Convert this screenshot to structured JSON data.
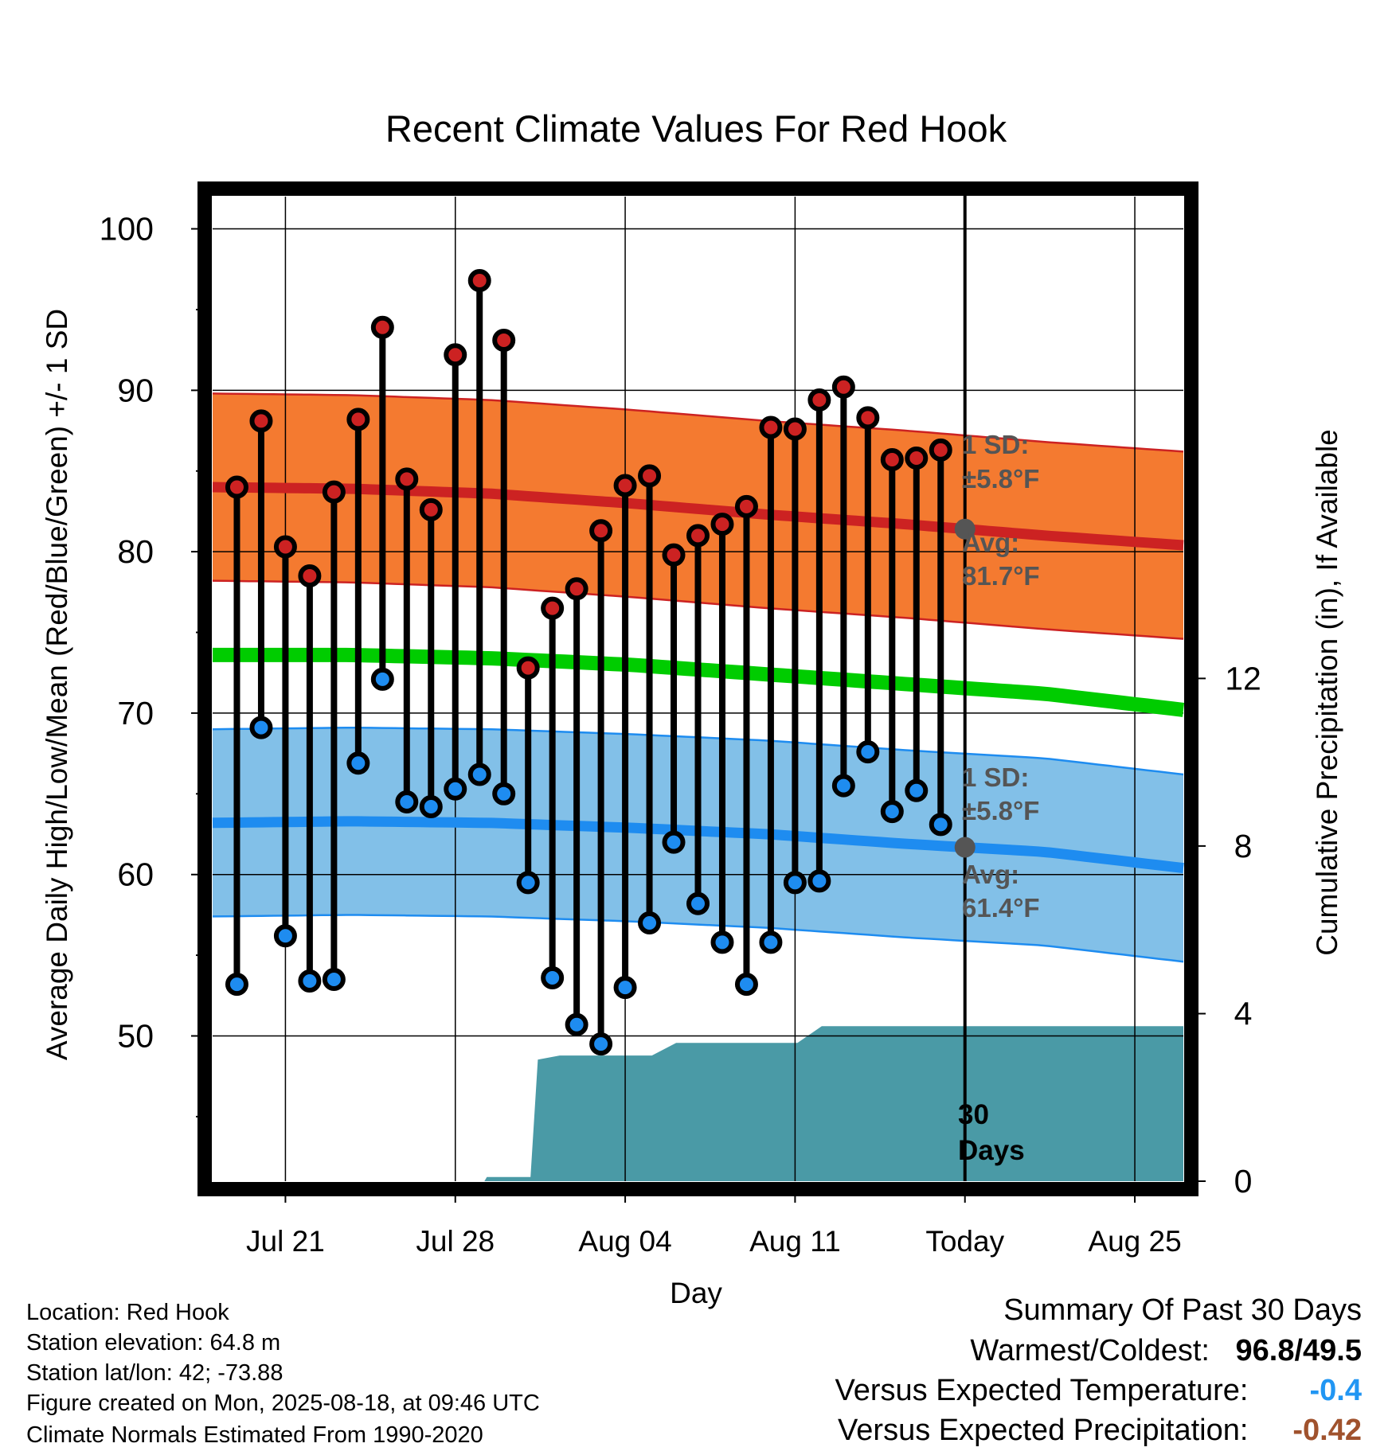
{
  "chart_data": {
    "type": "line",
    "title": "Recent Climate Values For Red Hook",
    "xlabel": "Day",
    "ylabel": "Average Daily High/Low/Mean (Red/Blue/Green) +/- 1 SD",
    "y2label": "Cumulative Precipitation (in), If Available",
    "ylim": [
      41,
      102
    ],
    "y2lim": [
      0,
      23.5
    ],
    "yticks": [
      "50",
      "60",
      "70",
      "80",
      "90",
      "100"
    ],
    "y2ticks": [
      "0",
      "4",
      "8",
      "12"
    ],
    "xticks": [
      "Jul 21",
      "Jul 28",
      "Aug 04",
      "Aug 11",
      "Today",
      "Aug 25"
    ],
    "grid": true,
    "colors": {
      "high": "#cc2222",
      "high_band": "#f47a30",
      "low": "#1e8cf0",
      "low_band": "#82c0e8",
      "mean": "#00cc00",
      "precip": "#4a9aa6",
      "marker_today": "#555555"
    },
    "days": [
      "Jul 19",
      "Jul 20",
      "Jul 21",
      "Jul 22",
      "Jul 23",
      "Jul 24",
      "Jul 25",
      "Jul 26",
      "Jul 27",
      "Jul 28",
      "Jul 29",
      "Jul 30",
      "Jul 31",
      "Aug 01",
      "Aug 02",
      "Aug 03",
      "Aug 04",
      "Aug 05",
      "Aug 06",
      "Aug 07",
      "Aug 08",
      "Aug 09",
      "Aug 10",
      "Aug 11",
      "Aug 12",
      "Aug 13",
      "Aug 14",
      "Aug 15",
      "Aug 16",
      "Aug 17"
    ],
    "series": [
      {
        "name": "High",
        "values": [
          84.0,
          88.1,
          80.3,
          78.5,
          83.7,
          88.2,
          93.9,
          84.5,
          82.6,
          92.2,
          96.8,
          93.1,
          72.8,
          76.5,
          77.7,
          81.3,
          84.1,
          84.7,
          79.8,
          81.0,
          81.7,
          82.8,
          87.7,
          87.6,
          89.4,
          90.2,
          88.3,
          85.7,
          85.8,
          86.3
        ]
      },
      {
        "name": "Low",
        "values": [
          53.2,
          69.1,
          56.2,
          53.4,
          53.5,
          66.9,
          72.1,
          64.5,
          64.2,
          65.3,
          66.2,
          65.0,
          59.5,
          53.6,
          50.7,
          49.5,
          53.0,
          57.0,
          62.0,
          58.2,
          55.8,
          53.2,
          55.8,
          59.5,
          59.6,
          65.5,
          67.6,
          63.9,
          65.2,
          63.1
        ]
      }
    ],
    "normals": {
      "day_range": [
        0,
        40
      ],
      "high_avg": [
        84.0,
        83.9,
        83.6,
        83.0,
        82.3,
        81.7,
        81.0,
        80.4
      ],
      "low_avg": [
        63.2,
        63.3,
        63.2,
        62.9,
        62.5,
        61.9,
        61.4,
        60.4
      ],
      "mean_avg": [
        73.6,
        73.6,
        73.4,
        73.0,
        72.4,
        71.8,
        71.2,
        70.2
      ],
      "sd": 5.8
    },
    "precipitation": {
      "x": [
        0,
        11.2,
        11.3,
        13.1,
        13.4,
        14.3,
        18.1,
        19.1,
        24.1,
        25.1,
        40
      ],
      "cumulative": [
        0,
        0,
        0.1,
        0.1,
        2.9,
        3.0,
        3.0,
        3.3,
        3.3,
        3.7,
        3.7
      ]
    },
    "annotations": {
      "high_sd_label": "1 SD:",
      "high_sd_value": "±5.8°F",
      "high_avg_label": "Avg:",
      "high_avg_value": "81.7°F",
      "low_sd_label": "1 SD:",
      "low_sd_value": "±5.8°F",
      "low_avg_label": "Avg:",
      "low_avg_value": "61.4°F",
      "period_line1": "30",
      "period_line2": "Days"
    }
  },
  "info": {
    "location": "Location: Red Hook",
    "elevation": "Station elevation: 64.8 m",
    "latlon": "Station lat/lon: 42; -73.88",
    "created": "Figure created on Mon, 2025-08-18, at 09:46 UTC",
    "normals": "Climate Normals Estimated From 1990-2020"
  },
  "summary": {
    "heading": "Summary Of Past 30 Days",
    "warm_cold_label": "Warmest/Coldest:",
    "warm_cold_value": "96.8/49.5",
    "temp_label": "Versus Expected Temperature:",
    "temp_value": "-0.4",
    "temp_color": "#2196f3",
    "precip_label": "Versus Expected Precipitation:",
    "precip_value": "-0.42",
    "precip_color": "#a0522d"
  }
}
